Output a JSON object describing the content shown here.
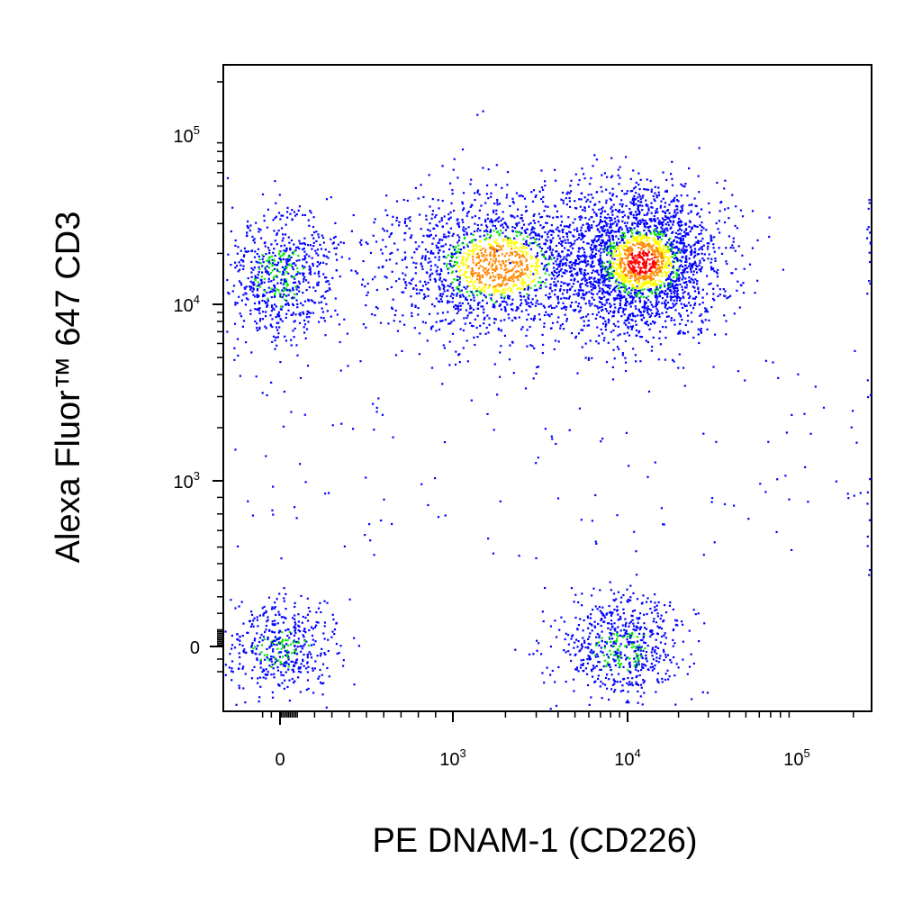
{
  "chart_data": {
    "type": "scatter",
    "style": "density-dot-plot",
    "xlabel": "PE  DNAM-1 (CD226)",
    "ylabel": "Alexa Fluor™ 647  CD3",
    "x_scale": "biexponential",
    "y_scale": "biexponential",
    "x_ticks": [
      {
        "value": 0,
        "base": "0",
        "exp": ""
      },
      {
        "value": 1000,
        "base": "10",
        "exp": "3"
      },
      {
        "value": 10000,
        "base": "10",
        "exp": "4"
      },
      {
        "value": 100000,
        "base": "10",
        "exp": "5"
      }
    ],
    "y_ticks": [
      {
        "value": 0,
        "base": "0",
        "exp": ""
      },
      {
        "value": 1000,
        "base": "10",
        "exp": "3"
      },
      {
        "value": 10000,
        "base": "10",
        "exp": "4"
      },
      {
        "value": 100000,
        "base": "10",
        "exp": "5"
      }
    ],
    "xlim": [
      -150,
      250000
    ],
    "ylim": [
      -150,
      250000
    ],
    "density_colors": [
      "#0000ff",
      "#00ee00",
      "#ffff00",
      "#ff8800",
      "#ff0000"
    ],
    "populations": [
      {
        "x_center": 0,
        "y_center": 15000,
        "events": 700
      },
      {
        "x_center": 1800,
        "y_center": 17000,
        "events": 1700
      },
      {
        "x_center": 12000,
        "y_center": 18000,
        "events": 2400
      },
      {
        "x_center": 0,
        "y_center": 0,
        "events": 480
      },
      {
        "x_center": 9000,
        "y_center": 0,
        "events": 650
      }
    ],
    "grid": false,
    "legend": "none"
  }
}
